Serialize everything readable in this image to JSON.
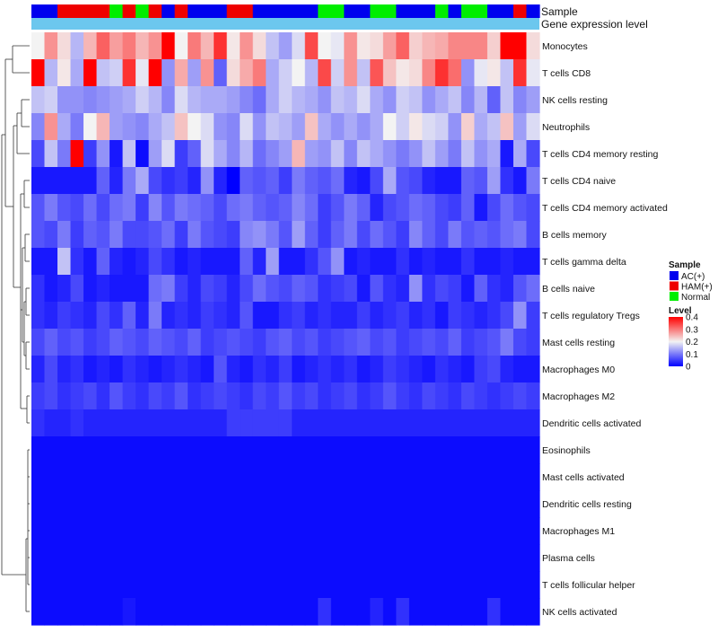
{
  "chart_data": {
    "type": "heatmap",
    "title": "",
    "annotation_tracks": [
      "Sample",
      "Gene expression level"
    ],
    "value_range": [
      0,
      0.4
    ],
    "rows": [
      "Monocytes",
      "T cells CD8",
      "NK cells resting",
      "Neutrophils",
      "T cells CD4 memory resting",
      "T cells CD4 naive",
      "T cells CD4 memory activated",
      "B cells memory",
      "T cells gamma delta",
      "B cells naive",
      "T cells regulatory  Tregs",
      "Mast cells resting",
      "Macrophages M0",
      "Macrophages M2",
      "Dendritic cells activated",
      "Eosinophils",
      "Mast cells activated",
      "Dendritic cells resting",
      "Macrophages M1",
      "Plasma cells",
      "T cells follicular helper",
      "NK cells activated"
    ],
    "column_groups": [
      "AC",
      "AC",
      "HAM",
      "HAM",
      "HAM",
      "HAM",
      "Normal",
      "HAM",
      "Normal",
      "HAM",
      "AC",
      "HAM",
      "AC",
      "AC",
      "AC",
      "HAM",
      "HAM",
      "AC",
      "AC",
      "AC",
      "AC",
      "AC",
      "Normal",
      "Normal",
      "AC",
      "AC",
      "Normal",
      "Normal",
      "AC",
      "AC",
      "AC",
      "Normal",
      "AC",
      "Normal",
      "Normal",
      "AC",
      "AC",
      "HAM",
      "AC"
    ],
    "values": [
      [
        0.2,
        0.28,
        0.22,
        0.15,
        0.25,
        0.32,
        0.27,
        0.3,
        0.25,
        0.28,
        0.4,
        0.2,
        0.3,
        0.25,
        0.36,
        0.21,
        0.28,
        0.22,
        0.16,
        0.13,
        0.18,
        0.34,
        0.2,
        0.19,
        0.28,
        0.21,
        0.22,
        0.27,
        0.32,
        0.23,
        0.25,
        0.26,
        0.29,
        0.29,
        0.29,
        0.23,
        0.4,
        0.4,
        0.22
      ],
      [
        0.4,
        0.15,
        0.21,
        0.14,
        0.4,
        0.16,
        0.17,
        0.36,
        0.19,
        0.4,
        0.12,
        0.26,
        0.13,
        0.28,
        0.08,
        0.22,
        0.26,
        0.3,
        0.14,
        0.17,
        0.2,
        0.15,
        0.34,
        0.17,
        0.28,
        0.16,
        0.33,
        0.24,
        0.21,
        0.22,
        0.29,
        0.36,
        0.31,
        0.12,
        0.19,
        0.21,
        0.16,
        0.36,
        0.19
      ],
      [
        0.16,
        0.17,
        0.12,
        0.12,
        0.11,
        0.12,
        0.13,
        0.14,
        0.17,
        0.15,
        0.11,
        0.18,
        0.15,
        0.14,
        0.14,
        0.13,
        0.11,
        0.09,
        0.14,
        0.17,
        0.15,
        0.14,
        0.12,
        0.16,
        0.15,
        0.18,
        0.14,
        0.12,
        0.17,
        0.16,
        0.12,
        0.14,
        0.16,
        0.11,
        0.15,
        0.08,
        0.16,
        0.11,
        0.13
      ],
      [
        0.11,
        0.28,
        0.14,
        0.1,
        0.2,
        0.25,
        0.13,
        0.12,
        0.11,
        0.14,
        0.16,
        0.24,
        0.2,
        0.18,
        0.12,
        0.11,
        0.18,
        0.12,
        0.16,
        0.15,
        0.13,
        0.24,
        0.14,
        0.12,
        0.14,
        0.12,
        0.14,
        0.2,
        0.17,
        0.21,
        0.18,
        0.17,
        0.12,
        0.23,
        0.14,
        0.16,
        0.24,
        0.13,
        0.18
      ],
      [
        0.06,
        0.16,
        0.1,
        0.4,
        0.05,
        0.12,
        0.02,
        0.16,
        0.01,
        0.13,
        0.18,
        0.05,
        0.08,
        0.18,
        0.14,
        0.11,
        0.15,
        0.09,
        0.11,
        0.13,
        0.25,
        0.13,
        0.12,
        0.16,
        0.11,
        0.16,
        0.14,
        0.12,
        0.1,
        0.12,
        0.16,
        0.13,
        0.1,
        0.16,
        0.12,
        0.14,
        0.02,
        0.14,
        0.06
      ],
      [
        0.02,
        0.02,
        0.02,
        0.02,
        0.02,
        0.08,
        0.03,
        0.1,
        0.14,
        0.06,
        0.04,
        0.05,
        0.03,
        0.12,
        0.03,
        0.0,
        0.08,
        0.07,
        0.08,
        0.05,
        0.1,
        0.08,
        0.07,
        0.09,
        0.03,
        0.02,
        0.06,
        0.14,
        0.07,
        0.06,
        0.03,
        0.02,
        0.02,
        0.08,
        0.07,
        0.13,
        0.04,
        0.02,
        0.1
      ],
      [
        0.07,
        0.1,
        0.07,
        0.06,
        0.09,
        0.06,
        0.09,
        0.1,
        0.05,
        0.11,
        0.07,
        0.1,
        0.09,
        0.08,
        0.06,
        0.09,
        0.1,
        0.08,
        0.07,
        0.08,
        0.11,
        0.09,
        0.05,
        0.07,
        0.1,
        0.08,
        0.03,
        0.06,
        0.07,
        0.09,
        0.08,
        0.06,
        0.05,
        0.08,
        0.02,
        0.06,
        0.09,
        0.07,
        0.06
      ],
      [
        0.07,
        0.06,
        0.1,
        0.05,
        0.08,
        0.07,
        0.1,
        0.06,
        0.06,
        0.07,
        0.09,
        0.05,
        0.1,
        0.07,
        0.06,
        0.05,
        0.11,
        0.12,
        0.1,
        0.07,
        0.13,
        0.08,
        0.05,
        0.08,
        0.1,
        0.06,
        0.09,
        0.07,
        0.05,
        0.11,
        0.08,
        0.06,
        0.1,
        0.07,
        0.08,
        0.07,
        0.09,
        0.1,
        0.06
      ],
      [
        0.02,
        0.02,
        0.16,
        0.04,
        0.02,
        0.08,
        0.03,
        0.02,
        0.03,
        0.06,
        0.04,
        0.02,
        0.03,
        0.02,
        0.02,
        0.02,
        0.08,
        0.03,
        0.13,
        0.02,
        0.02,
        0.04,
        0.07,
        0.12,
        0.02,
        0.03,
        0.02,
        0.02,
        0.04,
        0.02,
        0.03,
        0.02,
        0.02,
        0.04,
        0.02,
        0.02,
        0.03,
        0.02,
        0.02
      ],
      [
        0.04,
        0.02,
        0.03,
        0.06,
        0.02,
        0.03,
        0.02,
        0.02,
        0.02,
        0.09,
        0.1,
        0.05,
        0.03,
        0.06,
        0.05,
        0.03,
        0.06,
        0.09,
        0.07,
        0.06,
        0.08,
        0.07,
        0.04,
        0.05,
        0.06,
        0.02,
        0.07,
        0.04,
        0.03,
        0.12,
        0.04,
        0.06,
        0.05,
        0.02,
        0.08,
        0.04,
        0.03,
        0.07,
        0.09
      ],
      [
        0.04,
        0.03,
        0.05,
        0.04,
        0.03,
        0.06,
        0.04,
        0.08,
        0.03,
        0.1,
        0.03,
        0.04,
        0.03,
        0.05,
        0.04,
        0.03,
        0.07,
        0.02,
        0.02,
        0.04,
        0.05,
        0.03,
        0.04,
        0.03,
        0.03,
        0.05,
        0.03,
        0.04,
        0.05,
        0.03,
        0.04,
        0.02,
        0.05,
        0.04,
        0.03,
        0.04,
        0.06,
        0.12,
        0.05
      ],
      [
        0.06,
        0.08,
        0.06,
        0.07,
        0.05,
        0.06,
        0.08,
        0.07,
        0.06,
        0.08,
        0.07,
        0.06,
        0.08,
        0.05,
        0.06,
        0.07,
        0.06,
        0.05,
        0.07,
        0.08,
        0.06,
        0.07,
        0.05,
        0.06,
        0.07,
        0.08,
        0.06,
        0.07,
        0.05,
        0.06,
        0.07,
        0.06,
        0.08,
        0.05,
        0.06,
        0.07,
        0.1,
        0.06,
        0.05
      ],
      [
        0.03,
        0.06,
        0.03,
        0.04,
        0.02,
        0.03,
        0.02,
        0.04,
        0.03,
        0.02,
        0.03,
        0.04,
        0.03,
        0.02,
        0.07,
        0.03,
        0.02,
        0.04,
        0.03,
        0.05,
        0.02,
        0.03,
        0.04,
        0.03,
        0.04,
        0.02,
        0.03,
        0.05,
        0.04,
        0.03,
        0.02,
        0.04,
        0.03,
        0.02,
        0.05,
        0.06,
        0.03,
        0.02,
        0.02
      ],
      [
        0.05,
        0.06,
        0.04,
        0.05,
        0.06,
        0.04,
        0.07,
        0.05,
        0.04,
        0.06,
        0.05,
        0.07,
        0.04,
        0.05,
        0.06,
        0.05,
        0.04,
        0.06,
        0.05,
        0.07,
        0.05,
        0.06,
        0.04,
        0.05,
        0.06,
        0.04,
        0.05,
        0.07,
        0.05,
        0.04,
        0.06,
        0.05,
        0.04,
        0.06,
        0.05,
        0.04,
        0.05,
        0.06,
        0.05
      ],
      [
        0.04,
        0.03,
        0.03,
        0.04,
        0.03,
        0.03,
        0.03,
        0.03,
        0.03,
        0.03,
        0.03,
        0.03,
        0.03,
        0.03,
        0.03,
        0.05,
        0.05,
        0.05,
        0.05,
        0.05,
        0.03,
        0.03,
        0.03,
        0.03,
        0.03,
        0.03,
        0.03,
        0.03,
        0.03,
        0.03,
        0.03,
        0.03,
        0.03,
        0.03,
        0.03,
        0.03,
        0.03,
        0.03,
        0.03
      ],
      [
        0.01,
        0.01,
        0.01,
        0.01,
        0.01,
        0.01,
        0.01,
        0.01,
        0.01,
        0.01,
        0.01,
        0.01,
        0.01,
        0.01,
        0.01,
        0.01,
        0.01,
        0.01,
        0.01,
        0.01,
        0.01,
        0.01,
        0.01,
        0.01,
        0.01,
        0.01,
        0.01,
        0.01,
        0.01,
        0.01,
        0.01,
        0.01,
        0.01,
        0.01,
        0.01,
        0.01,
        0.01,
        0.01,
        0.01
      ],
      [
        0.01,
        0.01,
        0.01,
        0.01,
        0.01,
        0.01,
        0.01,
        0.01,
        0.01,
        0.01,
        0.01,
        0.01,
        0.01,
        0.01,
        0.01,
        0.01,
        0.01,
        0.01,
        0.01,
        0.01,
        0.01,
        0.01,
        0.01,
        0.01,
        0.01,
        0.01,
        0.01,
        0.01,
        0.01,
        0.01,
        0.01,
        0.01,
        0.01,
        0.01,
        0.01,
        0.01,
        0.01,
        0.01,
        0.01
      ],
      [
        0.01,
        0.01,
        0.01,
        0.01,
        0.01,
        0.01,
        0.01,
        0.01,
        0.01,
        0.01,
        0.01,
        0.01,
        0.01,
        0.01,
        0.01,
        0.01,
        0.01,
        0.01,
        0.01,
        0.01,
        0.01,
        0.01,
        0.01,
        0.01,
        0.01,
        0.01,
        0.01,
        0.01,
        0.01,
        0.01,
        0.01,
        0.01,
        0.01,
        0.01,
        0.01,
        0.01,
        0.01,
        0.01,
        0.01
      ],
      [
        0.01,
        0.01,
        0.01,
        0.01,
        0.01,
        0.01,
        0.01,
        0.01,
        0.01,
        0.01,
        0.01,
        0.01,
        0.01,
        0.01,
        0.01,
        0.01,
        0.01,
        0.01,
        0.01,
        0.01,
        0.01,
        0.01,
        0.01,
        0.01,
        0.01,
        0.01,
        0.01,
        0.01,
        0.01,
        0.01,
        0.01,
        0.01,
        0.01,
        0.01,
        0.01,
        0.01,
        0.01,
        0.01,
        0.01
      ],
      [
        0.01,
        0.01,
        0.01,
        0.01,
        0.01,
        0.01,
        0.01,
        0.01,
        0.01,
        0.01,
        0.01,
        0.01,
        0.01,
        0.01,
        0.01,
        0.01,
        0.01,
        0.01,
        0.01,
        0.01,
        0.01,
        0.01,
        0.01,
        0.01,
        0.01,
        0.01,
        0.01,
        0.01,
        0.01,
        0.01,
        0.01,
        0.01,
        0.01,
        0.01,
        0.01,
        0.01,
        0.01,
        0.01,
        0.01
      ],
      [
        0.01,
        0.01,
        0.01,
        0.01,
        0.01,
        0.01,
        0.01,
        0.01,
        0.01,
        0.01,
        0.01,
        0.01,
        0.01,
        0.01,
        0.01,
        0.01,
        0.01,
        0.01,
        0.01,
        0.01,
        0.01,
        0.01,
        0.01,
        0.01,
        0.01,
        0.01,
        0.01,
        0.01,
        0.01,
        0.01,
        0.01,
        0.01,
        0.01,
        0.01,
        0.01,
        0.01,
        0.01,
        0.01,
        0.01
      ],
      [
        0.01,
        0.01,
        0.01,
        0.01,
        0.01,
        0.01,
        0.01,
        0.02,
        0.01,
        0.01,
        0.01,
        0.01,
        0.01,
        0.01,
        0.01,
        0.01,
        0.01,
        0.01,
        0.01,
        0.01,
        0.01,
        0.01,
        0.04,
        0.01,
        0.01,
        0.01,
        0.03,
        0.01,
        0.04,
        0.01,
        0.01,
        0.01,
        0.01,
        0.01,
        0.01,
        0.04,
        0.01,
        0.01,
        0.01
      ]
    ],
    "legend": {
      "sample_title": "Sample",
      "sample_entries": [
        {
          "key": "AC",
          "label": "AC(+)",
          "color": "#0000ee"
        },
        {
          "key": "HAM",
          "label": "HAM(+)",
          "color": "#ee0000"
        },
        {
          "key": "Normal",
          "label": "Normal",
          "color": "#00ee00"
        }
      ],
      "level_title": "Level",
      "level_ticks": [
        {
          "value": 0.4,
          "label": "0.4"
        },
        {
          "value": 0.3,
          "label": "0.3"
        },
        {
          "value": 0.2,
          "label": "0.2"
        },
        {
          "value": 0.1,
          "label": "0.1"
        },
        {
          "value": 0,
          "label": "0"
        }
      ],
      "placement": "right"
    },
    "colors": {
      "low": "#0000ff",
      "mid": "#f3f3f3",
      "high": "#ff0000",
      "expression_track": "#6cc7ee",
      "dendrogram": "#333333"
    }
  }
}
